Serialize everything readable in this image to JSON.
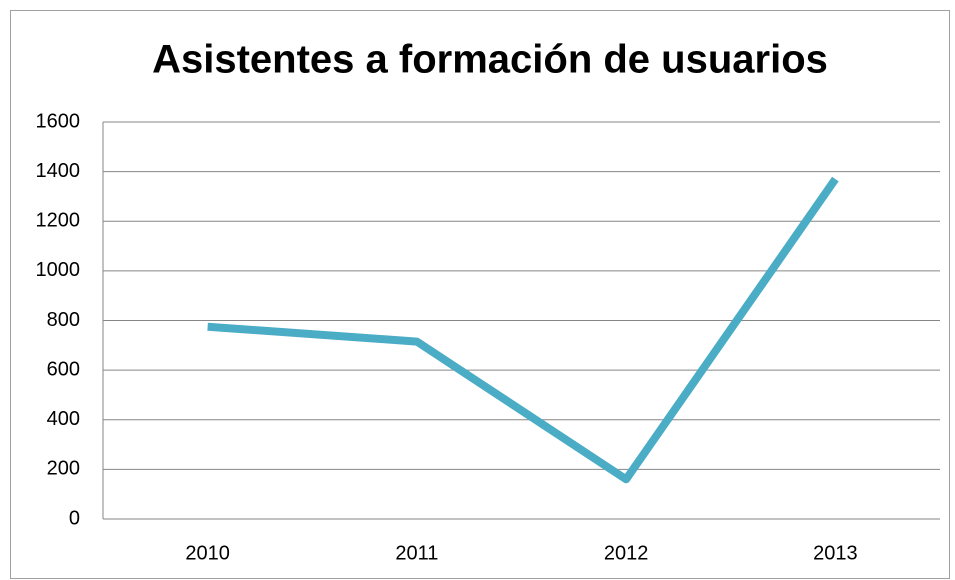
{
  "chart_data": {
    "type": "line",
    "title": "Asistentes a formación de usuarios",
    "categories": [
      "2010",
      "2011",
      "2012",
      "2013"
    ],
    "series": [
      {
        "name": "Asistentes",
        "color": "#4bacc6",
        "values": [
          775,
          715,
          160,
          1370
        ]
      }
    ],
    "ylim": [
      0,
      1600
    ],
    "yticks": [
      0,
      200,
      400,
      600,
      800,
      1000,
      1200,
      1400,
      1600
    ],
    "grid": true
  }
}
